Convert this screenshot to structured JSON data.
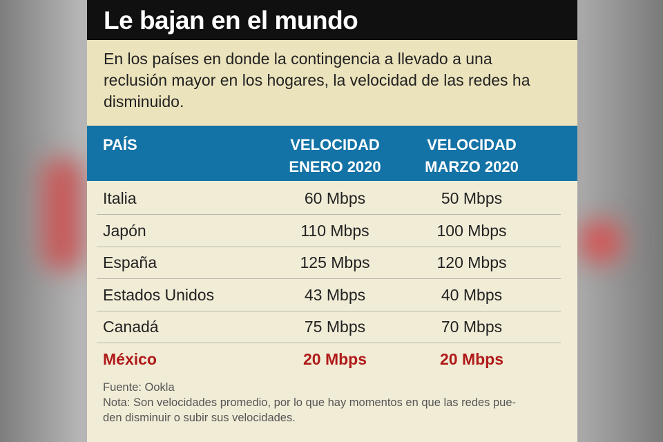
{
  "header": {
    "title": "Le bajan en el mundo",
    "subtitle": "En los países en donde la contingencia a llevado a una reclusión mayor en los hogares, la velocidad de las redes ha disminuido."
  },
  "table": {
    "columns": [
      "PAÍS",
      "VELOCIDAD ENERO 2020",
      "VELOCIDAD MARZO 2020"
    ],
    "rows": [
      [
        "Italia",
        "60 Mbps",
        "50 Mbps"
      ],
      [
        "Japón",
        "110 Mbps",
        "100 Mbps"
      ],
      [
        "España",
        "125 Mbps",
        "120 Mbps"
      ],
      [
        "Estados Unidos",
        "43 Mbps",
        "40 Mbps"
      ],
      [
        "Canadá",
        "75 Mbps",
        "70 Mbps"
      ],
      [
        "México",
        "20 Mbps",
        "20 Mbps"
      ]
    ],
    "highlight_row": 5
  },
  "footer": {
    "source": "Fuente: Ookla",
    "note": [
      "Nota: Son velocidades promedio, por lo que hay momentos en que las redes pue-",
      "den disminuir o subir sus velocidades."
    ]
  }
}
